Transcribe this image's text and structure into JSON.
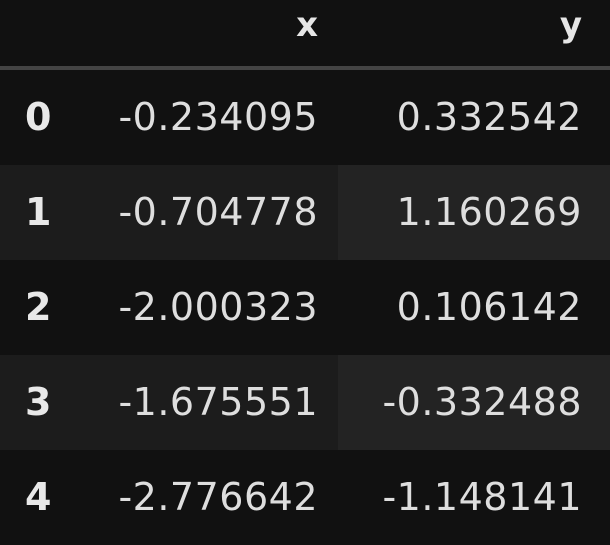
{
  "table": {
    "columns": [
      "x",
      "y"
    ],
    "rows": [
      {
        "index": "0",
        "x": "-0.234095",
        "y": "0.332542"
      },
      {
        "index": "1",
        "x": "-0.704778",
        "y": "1.160269"
      },
      {
        "index": "2",
        "x": "-2.000323",
        "y": "0.106142"
      },
      {
        "index": "3",
        "x": "-1.675551",
        "y": "-0.332488"
      },
      {
        "index": "4",
        "x": "-2.776642",
        "y": "-1.148141"
      }
    ]
  },
  "colors": {
    "background": "#111111",
    "stripe": "#1c1c1c",
    "header_rule": "#444444",
    "text": "#dedede"
  }
}
